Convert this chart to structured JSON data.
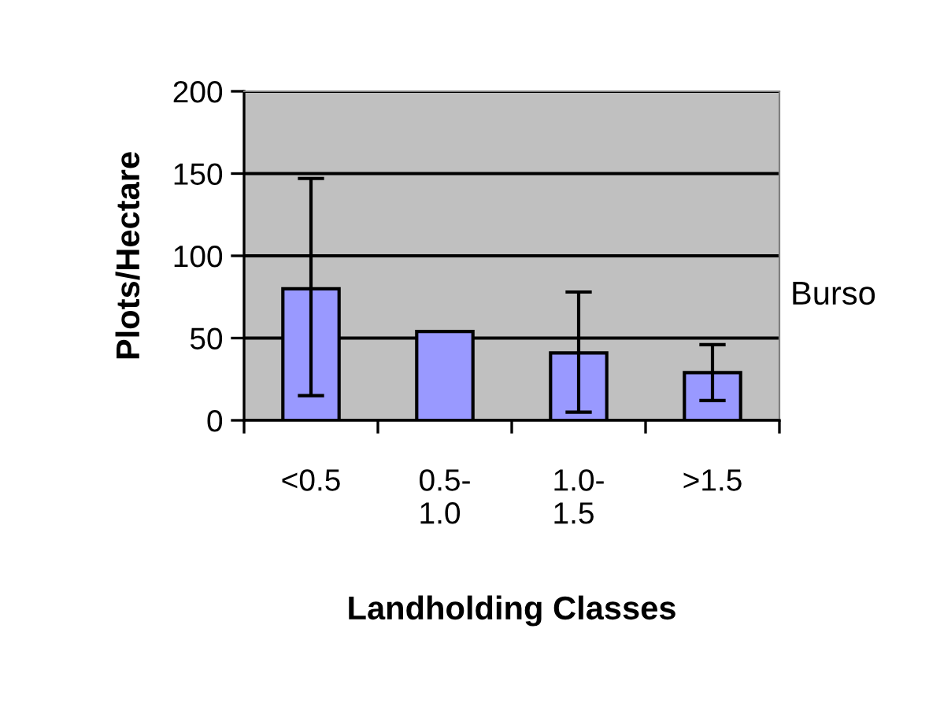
{
  "chart_data": {
    "type": "bar",
    "xlabel": "Landholding Classes",
    "ylabel": "Plots/Hectare",
    "categories": [
      "<0.5",
      "0.5-\n1.0",
      "1.0-\n1.5",
      ">1.5"
    ],
    "series": [
      {
        "color": "#9999ff",
        "values": [
          80,
          54,
          41,
          29
        ],
        "errors": [
          [
            15,
            147
          ],
          null,
          [
            5,
            78
          ],
          [
            12,
            46
          ]
        ]
      }
    ],
    "ylim": [
      0,
      200
    ],
    "yticks": [
      0,
      50,
      100,
      150,
      200
    ],
    "grid": "y",
    "annotations": [
      "Burso"
    ]
  }
}
